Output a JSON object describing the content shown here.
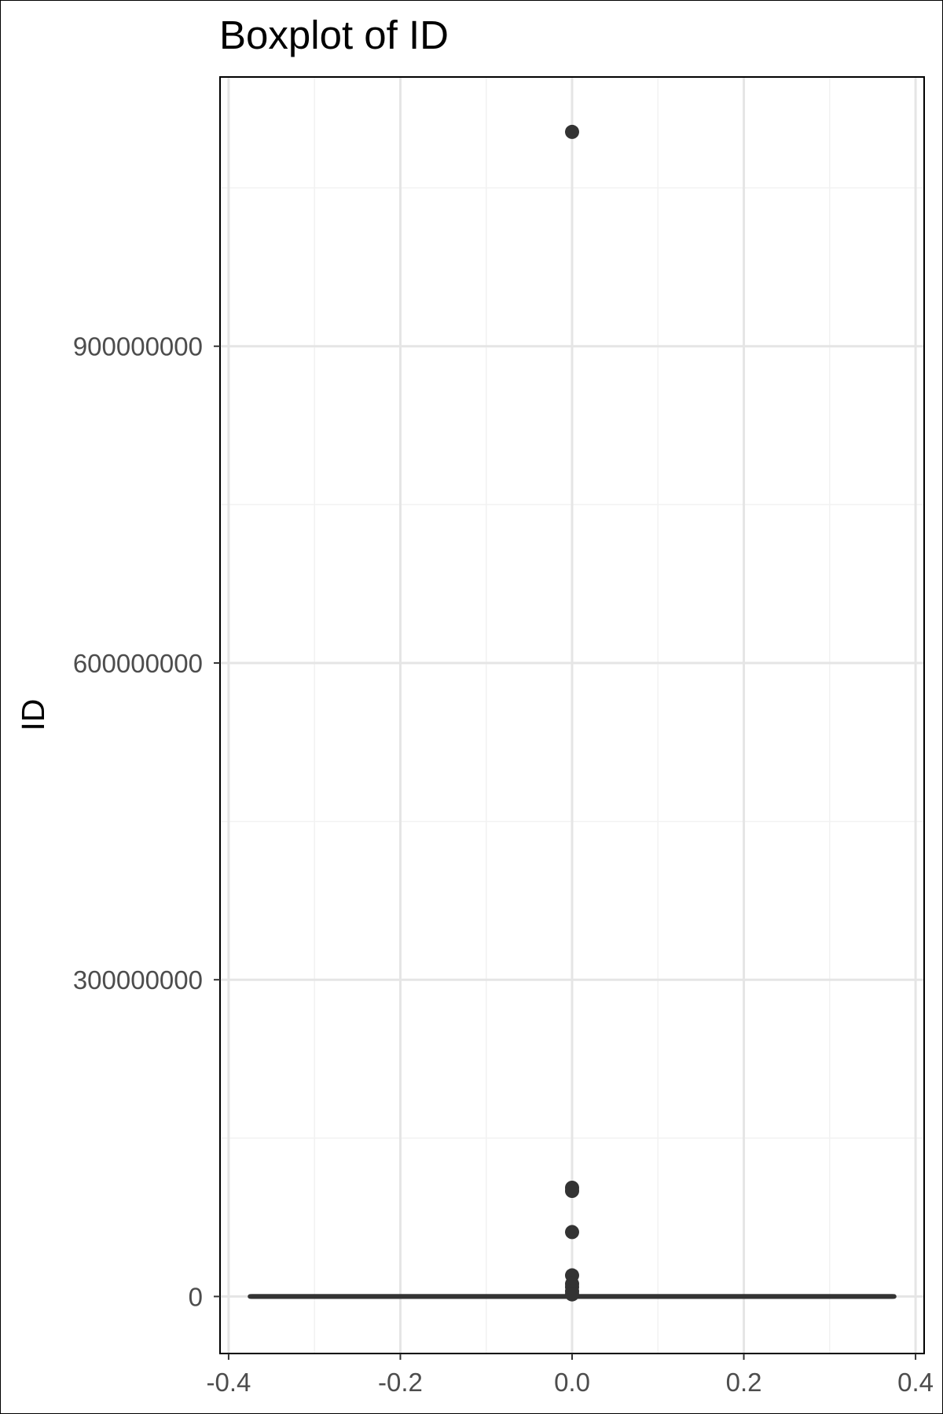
{
  "chart_data": {
    "type": "boxplot",
    "title": "Boxplot of ID",
    "xlabel": "",
    "ylabel": "ID",
    "xlim": [
      -0.41,
      0.41
    ],
    "ylim": [
      -54000000,
      1155000000
    ],
    "x_ticks": [
      -0.4,
      -0.2,
      0.0,
      0.2,
      0.4
    ],
    "x_tick_labels": [
      "-0.4",
      "-0.2",
      "0.0",
      "0.2",
      "0.4"
    ],
    "x_minor_ticks": [
      -0.3,
      -0.1,
      0.1,
      0.3
    ],
    "y_ticks": [
      0,
      300000000,
      600000000,
      900000000
    ],
    "y_tick_labels": [
      "0",
      "300000000",
      "600000000",
      "900000000"
    ],
    "y_minor_ticks": [
      150000000,
      450000000,
      750000000,
      1050000000
    ],
    "grid": true,
    "box": {
      "x": 0.0,
      "width": 0.75,
      "min": 0,
      "q1": 0,
      "median": 0,
      "q3": 0,
      "max": 0
    },
    "outliers": [
      1103000000,
      103000000,
      100000000,
      61000000,
      20000000,
      12000000,
      9000000,
      5000000,
      2000000
    ],
    "colors": {
      "box": "#333333",
      "outlier": "#333333",
      "grid_major": "#e5e5e5",
      "grid_minor": "#f2f2f2",
      "panel_border": "#000000",
      "tick_text": "#4d4d4d"
    }
  }
}
